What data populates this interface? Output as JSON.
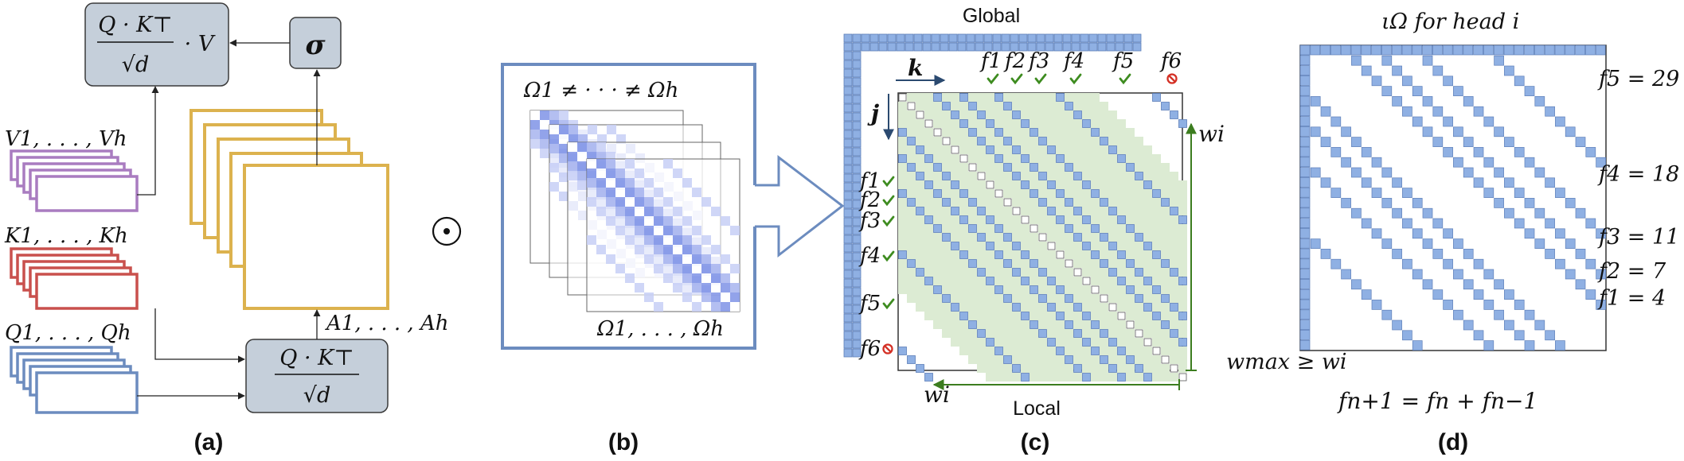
{
  "colors": {
    "gray_box": "#c5cfda",
    "gold": "#dcb24e",
    "purple": "#a97cc0",
    "red": "#c9504d",
    "blue": "#6c8cbf",
    "cell_blue": "#8fb0e3",
    "green_fill": "#dcebd3",
    "green_arrow": "#3c7d1f",
    "check": "#3e8c20",
    "stop": "#d43025",
    "heat_strong": "#7f93e6",
    "heat_light": "#c7cff6",
    "heat_mid": "#a7b4ef"
  },
  "panel_a": {
    "caption": "(a)",
    "softmax_num": "Q · K⊤",
    "softmax_den": "√d",
    "softmax_tail": "· V",
    "sigma": "σ",
    "v_label": "V1, . . . , Vh",
    "k_label": "K1, . . . , Kh",
    "q_label": "Q1, . . . , Qh",
    "scores_num": "Q · K⊤",
    "scores_den": "√d",
    "a_label": "A1, . . . , Ah"
  },
  "odot": "⊙",
  "panel_b": {
    "caption": "(b)",
    "top_label": "Ω1 ≠ · · · ≠ Ωh",
    "bottom_label": "Ω1, . . . , Ωh"
  },
  "panel_c": {
    "caption": "(c)",
    "global_label": "Global",
    "local_label": "Local",
    "k_label": "k",
    "j_label": "j",
    "w_right": "wi",
    "w_bottom": "wi",
    "wmax_label": "wmax ≥ wi",
    "f_labels": [
      "f1",
      "f2",
      "f3",
      "f4",
      "f5",
      "f6"
    ],
    "f_status": [
      "check",
      "check",
      "check",
      "check",
      "check",
      "stop"
    ]
  },
  "panel_d": {
    "caption": "(d)",
    "title": "ιΩ   for head i",
    "formula": "fn+1 = fn + fn−1",
    "fib_labels": [
      "f5 = 29",
      "f4 = 18",
      "f3 = 11",
      "f2 = 7",
      "f1 = 4"
    ]
  }
}
